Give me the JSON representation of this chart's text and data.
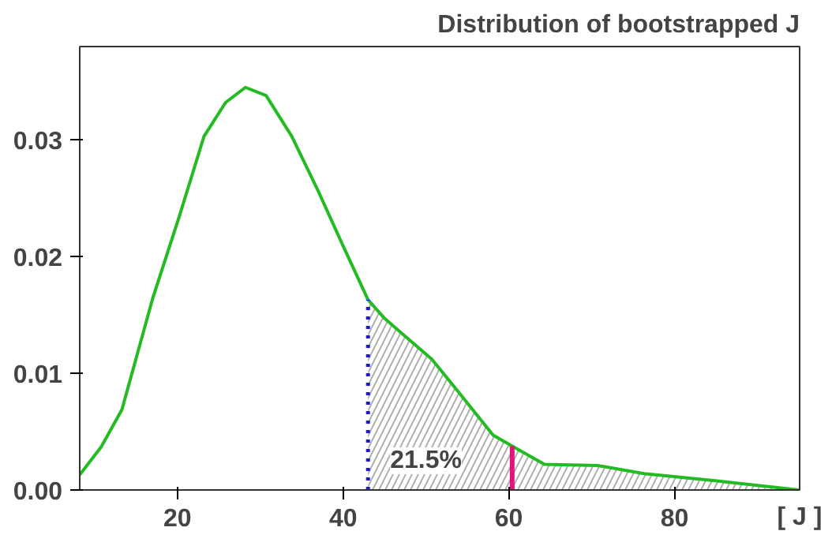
{
  "chart_data": {
    "type": "line",
    "title": "Distribution of bootstrapped J",
    "xlabel": "[ J ]",
    "xlim": [
      8.2,
      95.1
    ],
    "ylim": [
      0,
      0.038
    ],
    "xticks": [
      20,
      40,
      60,
      80
    ],
    "yticks": [
      {
        "value": 0,
        "label": "0.00"
      },
      {
        "value": 0.01,
        "label": "0.01"
      },
      {
        "value": 0.02,
        "label": "0.02"
      },
      {
        "value": 0.03,
        "label": "0.03"
      }
    ],
    "grid": false,
    "marker": "none",
    "line_style": "solid",
    "series": [
      {
        "type": "area",
        "color": "#b0b0b0",
        "x": [
          43.0,
          45.0,
          50.7,
          53.8,
          58.1,
          61.3,
          64.3,
          70.7,
          76.3,
          84.9,
          95.0
        ],
        "values": [
          0.0163,
          0.0147,
          0.0112,
          0.0085,
          0.0047,
          0.0034,
          0.0022,
          0.0021,
          0.0014,
          0.0008,
          0.0
        ]
      },
      {
        "color": "#22bb22",
        "x": [
          8.2,
          10.8,
          13.3,
          17.0,
          20.2,
          23.2,
          25.8,
          28.2,
          30.7,
          33.8,
          37.0,
          40.0,
          43.0,
          45.0,
          50.7,
          53.8,
          58.1,
          61.3,
          64.3,
          70.7,
          76.3,
          84.9,
          95.0
        ],
        "values": [
          0.0013,
          0.0037,
          0.0069,
          0.0164,
          0.0234,
          0.0303,
          0.0332,
          0.0345,
          0.0338,
          0.0303,
          0.0256,
          0.0209,
          0.0163,
          0.0147,
          0.0112,
          0.0085,
          0.0047,
          0.0034,
          0.0022,
          0.0021,
          0.0014,
          0.0008,
          0.0
        ]
      }
    ],
    "ref_lines": [
      {
        "axis": "x",
        "value": 43.0,
        "color": "#1a1acc",
        "line_style": "dotted"
      },
      {
        "axis": "x",
        "value": 60.4,
        "color": "#e0157a",
        "line_style": "solid"
      }
    ],
    "annotations": [
      "21.5%"
    ]
  }
}
